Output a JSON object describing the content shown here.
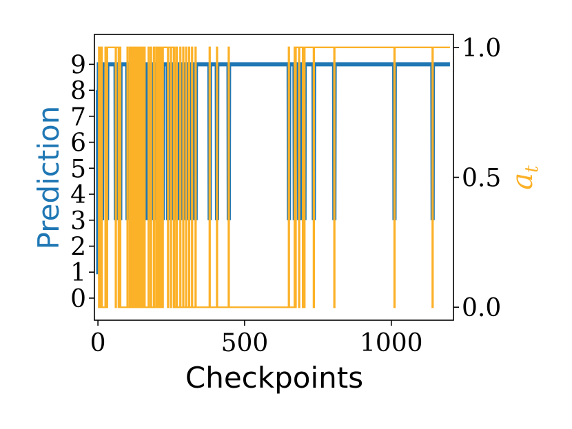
{
  "chart_data": {
    "type": "line",
    "xlabel": "Checkpoints",
    "ylabel_left": "Prediction",
    "ylabel_right_base": "a",
    "ylabel_right_sub": "t",
    "xlim": [
      -12,
      1212
    ],
    "ylim_left": [
      -0.85,
      10.15
    ],
    "ylim_right": [
      -0.05,
      1.05
    ],
    "x_ticks": [
      0,
      500,
      1000
    ],
    "y_ticks_left": [
      0,
      1,
      2,
      3,
      4,
      5,
      6,
      7,
      8,
      9
    ],
    "y_ticks_right": [
      0.0,
      0.5,
      1.0
    ],
    "y_tick_labels_right": [
      "0.0",
      "0.5",
      "1.0"
    ],
    "grid": false,
    "colors": {
      "prediction": "#1f77b4",
      "a_t": "#fbb128"
    },
    "series": [
      {
        "axis": "left",
        "color": "#1f77b4",
        "points": [
          [
            0,
            8
          ],
          [
            1,
            1
          ],
          [
            2,
            1
          ],
          [
            3,
            9
          ],
          [
            13,
            9
          ],
          [
            14,
            3
          ],
          [
            15,
            9
          ],
          [
            30,
            9
          ],
          [
            31,
            3
          ],
          [
            32,
            9
          ],
          [
            60,
            9
          ],
          [
            61,
            3
          ],
          [
            62,
            9
          ],
          [
            75,
            9
          ],
          [
            76,
            3
          ],
          [
            77,
            9
          ],
          [
            100,
            9
          ],
          [
            101,
            3
          ],
          [
            102,
            9
          ],
          [
            108,
            9
          ],
          [
            109,
            3
          ],
          [
            110,
            9
          ],
          [
            115,
            9
          ],
          [
            116,
            3
          ],
          [
            117,
            9
          ],
          [
            120,
            9
          ],
          [
            121,
            3
          ],
          [
            122,
            9
          ],
          [
            126,
            9
          ],
          [
            127,
            3
          ],
          [
            128,
            9
          ],
          [
            132,
            9
          ],
          [
            133,
            3
          ],
          [
            134,
            9
          ],
          [
            137,
            9
          ],
          [
            138,
            3
          ],
          [
            139,
            9
          ],
          [
            142,
            9
          ],
          [
            143,
            3
          ],
          [
            144,
            9
          ],
          [
            147,
            9
          ],
          [
            148,
            3
          ],
          [
            149,
            9
          ],
          [
            152,
            9
          ],
          [
            153,
            3
          ],
          [
            154,
            9
          ],
          [
            158,
            9
          ],
          [
            159,
            3
          ],
          [
            160,
            9
          ],
          [
            172,
            9
          ],
          [
            173,
            3
          ],
          [
            174,
            9
          ],
          [
            180,
            9
          ],
          [
            181,
            3
          ],
          [
            182,
            9
          ],
          [
            190,
            9
          ],
          [
            191,
            3
          ],
          [
            192,
            9
          ],
          [
            198,
            9
          ],
          [
            199,
            3
          ],
          [
            200,
            9
          ],
          [
            205,
            9
          ],
          [
            206,
            3
          ],
          [
            207,
            9
          ],
          [
            210,
            9
          ],
          [
            211,
            3
          ],
          [
            212,
            9
          ],
          [
            220,
            9
          ],
          [
            221,
            3
          ],
          [
            222,
            9
          ],
          [
            238,
            9
          ],
          [
            239,
            3
          ],
          [
            240,
            9
          ],
          [
            248,
            9
          ],
          [
            249,
            3
          ],
          [
            250,
            9
          ],
          [
            258,
            9
          ],
          [
            259,
            3
          ],
          [
            260,
            9
          ],
          [
            268,
            9
          ],
          [
            269,
            3
          ],
          [
            270,
            9
          ],
          [
            280,
            9
          ],
          [
            281,
            3
          ],
          [
            282,
            9
          ],
          [
            290,
            9
          ],
          [
            291,
            3
          ],
          [
            292,
            9
          ],
          [
            300,
            9
          ],
          [
            301,
            3
          ],
          [
            302,
            9
          ],
          [
            310,
            9
          ],
          [
            311,
            3
          ],
          [
            312,
            9
          ],
          [
            320,
            9
          ],
          [
            321,
            3
          ],
          [
            322,
            9
          ],
          [
            332,
            9
          ],
          [
            333,
            3
          ],
          [
            334,
            9
          ],
          [
            380,
            9
          ],
          [
            381,
            3
          ],
          [
            382,
            9
          ],
          [
            405,
            9
          ],
          [
            406,
            3
          ],
          [
            407,
            9
          ],
          [
            445,
            9
          ],
          [
            446,
            3
          ],
          [
            447,
            9
          ],
          [
            650,
            9
          ],
          [
            651,
            3
          ],
          [
            652,
            9
          ],
          [
            670,
            9
          ],
          [
            671,
            3
          ],
          [
            672,
            9
          ],
          [
            685,
            9
          ],
          [
            686,
            3
          ],
          [
            687,
            9
          ],
          [
            698,
            9
          ],
          [
            699,
            3
          ],
          [
            700,
            9
          ],
          [
            703,
            9
          ],
          [
            704,
            3
          ],
          [
            705,
            9
          ],
          [
            735,
            9
          ],
          [
            736,
            3
          ],
          [
            737,
            9
          ],
          [
            805,
            9
          ],
          [
            806,
            3
          ],
          [
            807,
            9
          ],
          [
            1010,
            9
          ],
          [
            1011,
            3
          ],
          [
            1012,
            9
          ],
          [
            1140,
            9
          ],
          [
            1141,
            3
          ],
          [
            1142,
            9
          ],
          [
            1200,
            9
          ]
        ]
      },
      {
        "axis": "right",
        "color": "#fbb128",
        "step_x": [
          3,
          5,
          8,
          13,
          14,
          25,
          30,
          32,
          60,
          62,
          70,
          75,
          77,
          100,
          102,
          108,
          110,
          115,
          117,
          120,
          122,
          124,
          126,
          128,
          130,
          132,
          134,
          136,
          137,
          139,
          140,
          142,
          144,
          146,
          147,
          149,
          150,
          152,
          154,
          158,
          160,
          172,
          174,
          180,
          182,
          190,
          192,
          198,
          200,
          205,
          207,
          210,
          212,
          215,
          220,
          222,
          238,
          240,
          248,
          250,
          258,
          260,
          262,
          268,
          270,
          280,
          282,
          290,
          292,
          300,
          302,
          310,
          312,
          320,
          322,
          332,
          334,
          380,
          382,
          405,
          407,
          445,
          447,
          650,
          652,
          670,
          672,
          675,
          685,
          687,
          698,
          700,
          703,
          705,
          735,
          737,
          805,
          807,
          1010,
          1012,
          1140,
          1142
        ],
        "x_end": 1200
      }
    ]
  }
}
